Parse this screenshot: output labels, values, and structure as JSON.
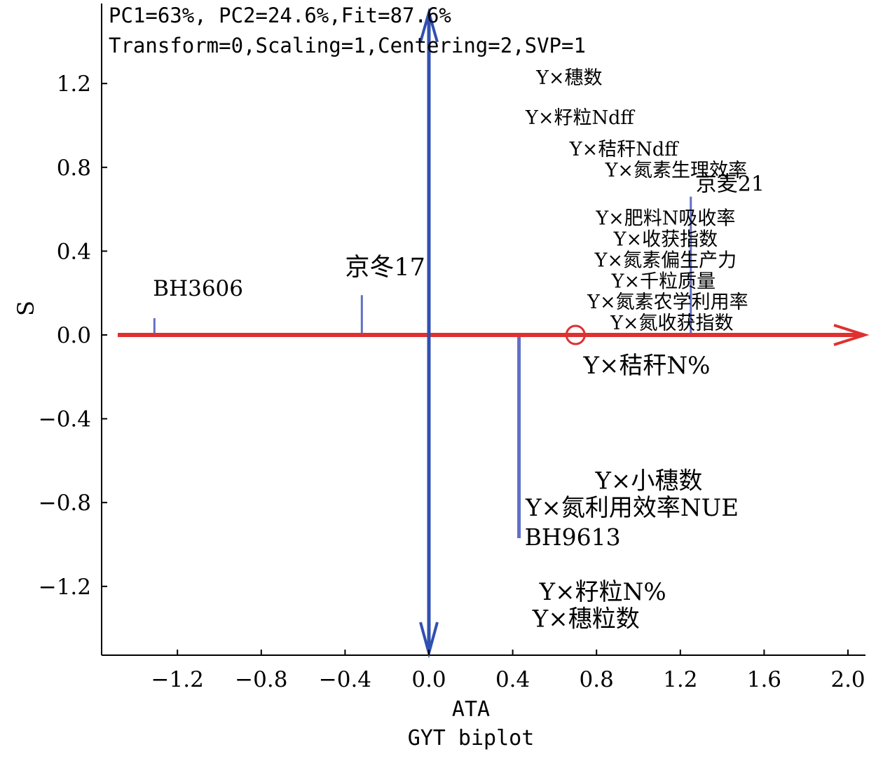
{
  "chart_data": {
    "type": "scatter",
    "subtitle_lines": [
      "PC1=63%, PC2=24.6%,Fit=87.6%",
      "Transform=0,Scaling=1,Centering=2,SVP=1"
    ],
    "xlabel": "ATA",
    "caption": "GYT biplot",
    "ylabel": "S",
    "xlim": [
      -1.55,
      2.08
    ],
    "ylim": [
      -1.52,
      1.52
    ],
    "x_ticks": [
      -1.2,
      -0.8,
      -0.4,
      0.0,
      0.4,
      0.8,
      1.2,
      1.6,
      2.0
    ],
    "x_tick_labels": [
      "−1.2",
      "−0.8",
      "−0.4",
      "0.0",
      "0.4",
      "0.8",
      "1.2",
      "1.6",
      "2.0"
    ],
    "y_ticks": [
      1.2,
      0.8,
      0.4,
      0.0,
      -0.4,
      -0.8,
      -1.2
    ],
    "y_tick_labels": [
      "1.2",
      "0.8",
      "0.4",
      "0.0",
      "−0.4",
      "−0.8",
      "−1.2"
    ],
    "ata_marker": {
      "x": 0.7,
      "y": 0.0
    },
    "genotypes": [
      {
        "label": "BH3606",
        "x": -1.31,
        "y": 0.08
      },
      {
        "label": "京冬17",
        "x": -0.32,
        "y": 0.19
      },
      {
        "label": "京麦21",
        "x": 1.25,
        "y": 0.66
      },
      {
        "label": "BH9613",
        "x": 0.43,
        "y": -0.97
      }
    ],
    "traits": [
      {
        "label": "Y×穗数",
        "x": 0.67,
        "y": 1.23
      },
      {
        "label": "Y×籽粒Ndff",
        "x": 0.72,
        "y": 1.04
      },
      {
        "label": "Y×秸秆Ndff",
        "x": 0.93,
        "y": 0.89
      },
      {
        "label": "Y×氮素生理效率",
        "x": 1.18,
        "y": 0.79
      },
      {
        "label": "Y×肥料N吸收率",
        "x": 1.13,
        "y": 0.56
      },
      {
        "label": "Y×收获指数",
        "x": 1.13,
        "y": 0.46
      },
      {
        "label": "Y×氮素偏生产力",
        "x": 1.13,
        "y": 0.36
      },
      {
        "label": "Y×千粒质量",
        "x": 1.12,
        "y": 0.26
      },
      {
        "label": "Y×氮素农学利用率",
        "x": 1.14,
        "y": 0.16
      },
      {
        "label": "Y×氮收获指数",
        "x": 1.16,
        "y": 0.06
      },
      {
        "label": "Y×秸秆N%",
        "x": 1.04,
        "y": -0.14
      },
      {
        "label": "Y×小穗数",
        "x": 1.05,
        "y": -0.69
      },
      {
        "label": "Y×氮利用效率NUE",
        "x": 0.97,
        "y": -0.82
      },
      {
        "label": "Y×籽粒N%",
        "x": 0.83,
        "y": -1.22
      },
      {
        "label": "Y×穗粒数",
        "x": 0.75,
        "y": -1.35
      }
    ],
    "colors": {
      "ata_axis": "#e03030",
      "ord_axis": "#3050b0",
      "projection": "#6070c8",
      "frame": "#000000",
      "text": "#000000"
    },
    "grid": false
  }
}
